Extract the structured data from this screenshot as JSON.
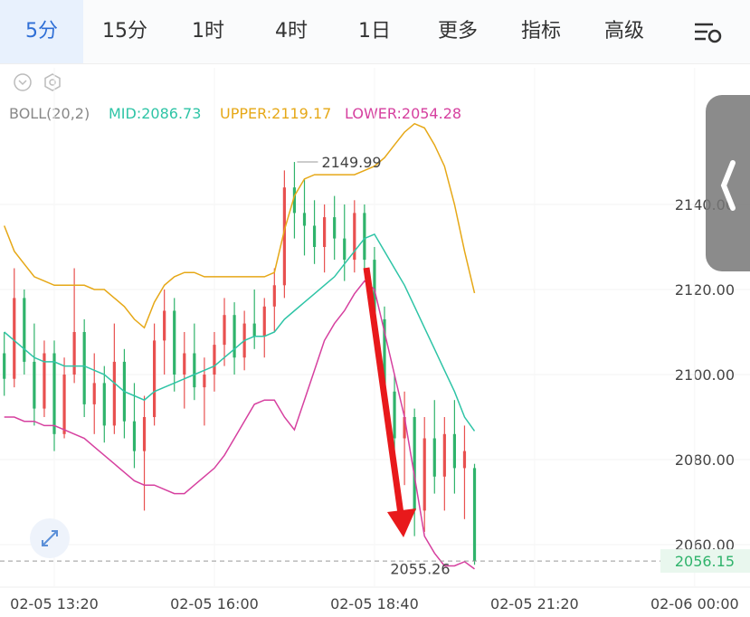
{
  "tabs": [
    "5分",
    "15分",
    "1时",
    "4时",
    "1日",
    "更多",
    "指标",
    "高级"
  ],
  "chart_data": {
    "type": "candlestick",
    "indicator": "BOLL(20,2)",
    "x": [
      -10,
      -8,
      -6,
      -4,
      -2,
      0,
      2,
      4,
      6,
      8,
      10,
      12,
      14,
      16,
      18,
      20,
      22,
      24,
      26,
      28,
      30,
      32,
      34,
      36,
      38,
      40,
      42,
      44,
      46,
      48,
      50,
      52,
      54,
      56,
      58,
      60,
      62,
      64,
      66,
      68,
      70,
      72,
      74,
      76,
      78,
      80,
      82,
      84
    ],
    "open": [
      2105,
      2099,
      2118,
      2103,
      2092,
      2105,
      2086,
      2100,
      2110,
      2093,
      2098,
      2088,
      2103,
      2089,
      2082,
      2090,
      2108,
      2115,
      2100,
      2105,
      2097,
      2100,
      2107,
      2114,
      2104,
      2112,
      2109,
      2116,
      2121,
      2144,
      2138,
      2135,
      2130,
      2137,
      2132,
      2127,
      2138,
      2127,
      2113,
      2096,
      2085,
      2090,
      2068,
      2085,
      2076,
      2086,
      2078,
      2078
    ],
    "high": [
      2110,
      2125,
      2120,
      2112,
      2108,
      2108,
      2104,
      2125,
      2113,
      2105,
      2102,
      2112,
      2106,
      2098,
      2095,
      2112,
      2120,
      2118,
      2110,
      2112,
      2104,
      2110,
      2118,
      2117,
      2115,
      2120,
      2118,
      2125,
      2148,
      2149.99,
      2146,
      2141,
      2140,
      2142,
      2140,
      2141,
      2140,
      2130,
      2116,
      2100,
      2096,
      2092,
      2090,
      2094,
      2090,
      2094,
      2088,
      2079
    ],
    "low": [
      2095,
      2097,
      2100,
      2088,
      2090,
      2082,
      2085,
      2098,
      2090,
      2086,
      2084,
      2086,
      2085,
      2078,
      2068,
      2088,
      2100,
      2096,
      2092,
      2094,
      2088,
      2096,
      2102,
      2100,
      2101,
      2106,
      2104,
      2110,
      2118,
      2132,
      2128,
      2126,
      2124,
      2127,
      2122,
      2124,
      2124,
      2110,
      2093,
      2080,
      2074,
      2062,
      2063,
      2072,
      2068,
      2072,
      2066,
      2055.26
    ],
    "close": [
      2099,
      2118,
      2103,
      2092,
      2105,
      2086,
      2100,
      2110,
      2093,
      2098,
      2088,
      2103,
      2089,
      2082,
      2090,
      2108,
      2115,
      2100,
      2105,
      2097,
      2100,
      2107,
      2114,
      2104,
      2112,
      2109,
      2116,
      2121,
      2144,
      2138,
      2135,
      2130,
      2137,
      2132,
      2127,
      2138,
      2127,
      2113,
      2096,
      2085,
      2090,
      2068,
      2085,
      2076,
      2086,
      2078,
      2082,
      2056.15
    ],
    "series": [
      {
        "name": "MID",
        "label": "MID:2086.73",
        "color": "#2ec4a6",
        "values": [
          2110,
          2108,
          2106,
          2104,
          2103,
          2103,
          2102,
          2102,
          2102,
          2101,
          2100,
          2098,
          2096,
          2095,
          2094,
          2096,
          2097,
          2098,
          2099,
          2100,
          2101,
          2102,
          2104,
          2106,
          2108,
          2109,
          2109,
          2110,
          2113,
          2115,
          2117,
          2119,
          2121,
          2123,
          2126,
          2129,
          2132,
          2133,
          2129,
          2125,
          2121,
          2116,
          2111,
          2106,
          2101,
          2096,
          2090,
          2086.73
        ]
      },
      {
        "name": "UPPER",
        "label": "UPPER:2119.17",
        "color": "#e6a817",
        "values": [
          2135,
          2129,
          2126,
          2123,
          2122,
          2121,
          2121,
          2121,
          2121,
          2120,
          2120,
          2118,
          2116,
          2113,
          2111,
          2117,
          2121,
          2123,
          2124,
          2124,
          2123,
          2123,
          2123,
          2123,
          2123,
          2123,
          2123,
          2124,
          2134,
          2142,
          2146,
          2147,
          2147,
          2147,
          2147,
          2147,
          2148,
          2149,
          2151,
          2154,
          2157,
          2159,
          2158,
          2154,
          2149,
          2140,
          2129,
          2119.17
        ]
      },
      {
        "name": "LOWER",
        "label": "LOWER:2054.28",
        "color": "#d6409f",
        "values": [
          2090,
          2090,
          2089,
          2089,
          2088,
          2088,
          2087,
          2086,
          2085,
          2083,
          2081,
          2079,
          2077,
          2075,
          2074,
          2074,
          2073,
          2072,
          2072,
          2074,
          2076,
          2078,
          2081,
          2085,
          2089,
          2093,
          2094,
          2094,
          2090,
          2087,
          2094,
          2101,
          2108,
          2112,
          2115,
          2119,
          2122,
          2120,
          2110,
          2100,
          2090,
          2076,
          2062,
          2058,
          2055,
          2055,
          2056,
          2054.28
        ]
      }
    ],
    "up_color": "#e8504f",
    "down_color": "#2fb36b",
    "xlim": [
      -10.85,
      139.06
    ],
    "xticks": [
      {
        "value": 0,
        "label": "02-05 13:20"
      },
      {
        "value": 32,
        "label": "02-05 16:00"
      },
      {
        "value": 64,
        "label": "02-05 18:40"
      },
      {
        "value": 96,
        "label": "02-05 21:20"
      },
      {
        "value": 128,
        "label": "02-06 00:00"
      }
    ],
    "ylim": [
      2050,
      2172
    ],
    "yticks": [
      {
        "value": 2060,
        "label": "2060.00"
      },
      {
        "value": 2080,
        "label": "2080.00"
      },
      {
        "value": 2100,
        "label": "2100.00"
      },
      {
        "value": 2120,
        "label": "2120.00"
      },
      {
        "value": 2140,
        "label": "2140.00"
      }
    ],
    "grid": true
  }
}
